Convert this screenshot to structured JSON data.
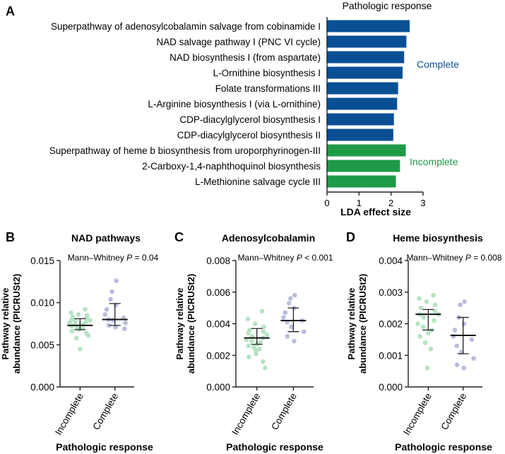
{
  "colors": {
    "complete": "#0a4f94",
    "incomplete": "#1f9a47",
    "complete_points": "#b9bedd",
    "incomplete_points": "#b7e3c3",
    "text": "#111111"
  },
  "chart_data": [
    {
      "panel": "A",
      "type": "bar",
      "orientation": "horizontal",
      "title": "Pathologic response",
      "xlabel": "LDA effect size",
      "xlim": [
        0,
        3
      ],
      "xticks": [
        "0",
        "1",
        "2",
        "3"
      ],
      "categories": [
        "Superpathway of adenosylcobalamin salvage from cobinamide I",
        "NAD salvage pathway I (PNC VI cycle)",
        "NAD biosynthesis I (from aspartate)",
        "L-Ornithine biosynthesis I",
        "Folate transformations III",
        "L-Arginine biosynthesis I (via L-ornithine)",
        "CDP-diacylglycerol biosynthesis I",
        "CDP-diacylglycerol biosynthesis II",
        "Superpathway of heme b biosynthesis from uroporphyrinogen-III",
        "2-Carboxy-1,4-naphthoquinol biosynthesis",
        "L-Methionine salvage cycle III"
      ],
      "values": [
        2.58,
        2.48,
        2.41,
        2.36,
        2.22,
        2.19,
        2.09,
        2.07,
        2.46,
        2.28,
        2.15
      ],
      "groups": [
        "complete",
        "complete",
        "complete",
        "complete",
        "complete",
        "complete",
        "complete",
        "complete",
        "incomplete",
        "incomplete",
        "incomplete"
      ],
      "legend": [
        {
          "label": "Complete",
          "group": "complete"
        },
        {
          "label": "Incomplete",
          "group": "incomplete"
        }
      ]
    },
    {
      "panel": "B",
      "type": "scatter",
      "title": "NAD pathways",
      "stat": {
        "prefix": "Mann–Whitney ",
        "p": "P",
        "suffix": " = 0.04"
      },
      "ylabel": [
        "Pathway relative",
        "abundance (PICRUSt2)"
      ],
      "xlabel": "Pathologic response",
      "categories": [
        "Incomplete",
        "Complete"
      ],
      "ylim": [
        0,
        0.015
      ],
      "yticks": [
        0,
        0.005,
        0.01,
        0.015
      ],
      "ytick_labels": [
        "0.000",
        "0.005",
        "0.010",
        "0.015"
      ],
      "series": [
        {
          "name": "Incomplete",
          "median": 0.0073,
          "q1": 0.0068,
          "q3": 0.0081,
          "values": [
            0.0092,
            0.0088,
            0.0086,
            0.0085,
            0.0083,
            0.0082,
            0.008,
            0.0079,
            0.0078,
            0.0077,
            0.0076,
            0.0075,
            0.0074,
            0.0073,
            0.0072,
            0.0071,
            0.007,
            0.0069,
            0.0068,
            0.0066,
            0.0064,
            0.0061,
            0.0058,
            0.0045
          ]
        },
        {
          "name": "Complete",
          "median": 0.008,
          "q1": 0.0073,
          "q3": 0.0099,
          "values": [
            0.0126,
            0.0113,
            0.0104,
            0.0097,
            0.0092,
            0.0086,
            0.0082,
            0.008,
            0.0079,
            0.0076,
            0.0073,
            0.0071,
            0.0069
          ]
        }
      ]
    },
    {
      "panel": "C",
      "type": "scatter",
      "title": "Adenosylcobalamin",
      "stat": {
        "prefix": "Mann–Whitney ",
        "p": "P",
        "suffix": " < 0.001"
      },
      "ylabel": [
        "Pathway relative",
        "abundance (PICRUSt2)"
      ],
      "xlabel": "Pathologic response",
      "categories": [
        "Incomplete",
        "Complete"
      ],
      "ylim": [
        0,
        0.008
      ],
      "yticks": [
        0,
        0.002,
        0.004,
        0.006,
        0.008
      ],
      "ytick_labels": [
        "0.000",
        "0.002",
        "0.004",
        "0.006",
        "0.008"
      ],
      "series": [
        {
          "name": "Incomplete",
          "median": 0.0031,
          "q1": 0.0027,
          "q3": 0.0037,
          "values": [
            0.0048,
            0.0043,
            0.004,
            0.0038,
            0.0036,
            0.0035,
            0.0034,
            0.0033,
            0.0032,
            0.0031,
            0.003,
            0.0029,
            0.0028,
            0.0027,
            0.0026,
            0.0025,
            0.0024,
            0.0023,
            0.0021,
            0.0019,
            0.0016,
            0.0012
          ]
        },
        {
          "name": "Complete",
          "median": 0.0042,
          "q1": 0.0035,
          "q3": 0.005,
          "values": [
            0.0058,
            0.0056,
            0.0053,
            0.005,
            0.0047,
            0.0044,
            0.0042,
            0.0041,
            0.0038,
            0.0035,
            0.0032,
            0.0029
          ]
        }
      ]
    },
    {
      "panel": "D",
      "type": "scatter",
      "title": "Heme biosynthesis",
      "stat": {
        "prefix": "Mann–Whitney ",
        "p": "P",
        "suffix": " = 0.008"
      },
      "ylabel": [
        "Pathway relative",
        "abundance (PICRUSt2)"
      ],
      "xlabel": "Pathologic response",
      "categories": [
        "Incomplete",
        "Complete"
      ],
      "ylim": [
        0,
        0.004
      ],
      "yticks": [
        0,
        0.001,
        0.002,
        0.003,
        0.004
      ],
      "ytick_labels": [
        "0.000",
        "0.001",
        "0.002",
        "0.003",
        "0.004"
      ],
      "series": [
        {
          "name": "Incomplete",
          "median": 0.0023,
          "q1": 0.0018,
          "q3": 0.00245,
          "values": [
            0.0029,
            0.0028,
            0.0027,
            0.0026,
            0.0025,
            0.0024,
            0.0023,
            0.0023,
            0.0022,
            0.0021,
            0.002,
            0.0019,
            0.0018,
            0.0017,
            0.0016,
            0.0014,
            0.0012,
            0.0006
          ]
        },
        {
          "name": "Complete",
          "median": 0.00163,
          "q1": 0.00105,
          "q3": 0.0022,
          "values": [
            0.0027,
            0.0026,
            0.0022,
            0.002,
            0.0018,
            0.0016,
            0.0015,
            0.0013,
            0.0011,
            0.0009,
            0.0007,
            0.0006
          ]
        }
      ]
    }
  ]
}
